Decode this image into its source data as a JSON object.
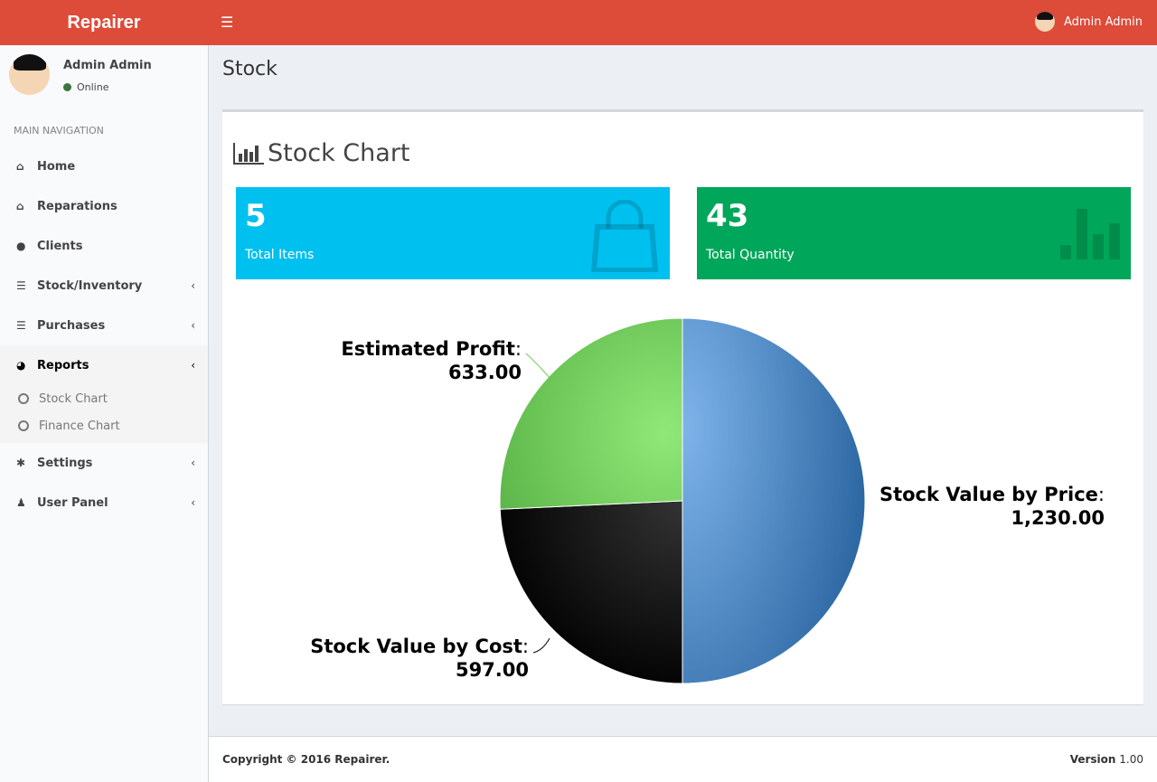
{
  "app": {
    "logo": "Repairer",
    "user": "Admin Admin"
  },
  "sidebar": {
    "user": "Admin Admin",
    "status": "Online",
    "nav_header": "MAIN NAVIGATION",
    "items": [
      {
        "label": "Home",
        "icon": "home-icon"
      },
      {
        "label": "Reparations",
        "icon": "home-icon"
      },
      {
        "label": "Clients",
        "icon": "users-icon"
      },
      {
        "label": "Stock/Inventory",
        "icon": "list-icon"
      },
      {
        "label": "Purchases",
        "icon": "list-icon"
      },
      {
        "label": "Reports",
        "icon": "pie-chart-icon"
      },
      {
        "label": "Settings",
        "icon": "gear-icon"
      },
      {
        "label": "User Panel",
        "icon": "user-icon"
      }
    ],
    "report_sub": [
      "Stock Chart",
      "Finance Chart"
    ]
  },
  "page": {
    "title": "Stock",
    "box_title": "Stock Chart"
  },
  "tiles": [
    {
      "value": "5",
      "label": "Total Items",
      "color": "#00c0ef",
      "icon": "shopping-bag-icon"
    },
    {
      "value": "43",
      "label": "Total Quantity",
      "color": "#00a65a",
      "icon": "bar-chart-icon"
    }
  ],
  "chart_data": {
    "type": "pie",
    "slices": [
      {
        "label": "Stock Value by Price",
        "value": 1230.0,
        "display": "1,230.00",
        "color": "#4a86c5"
      },
      {
        "label": "Stock Value by Cost",
        "value": 597.0,
        "display": "597.00",
        "color": "#1a1a1a"
      },
      {
        "label": "Estimated Profit",
        "value": 633.0,
        "display": "633.00",
        "color": "#6cc95a"
      }
    ]
  },
  "footer": {
    "copyright": "Copyright © 2016 Repairer.",
    "version_label": "Version",
    "version": "1.00"
  }
}
